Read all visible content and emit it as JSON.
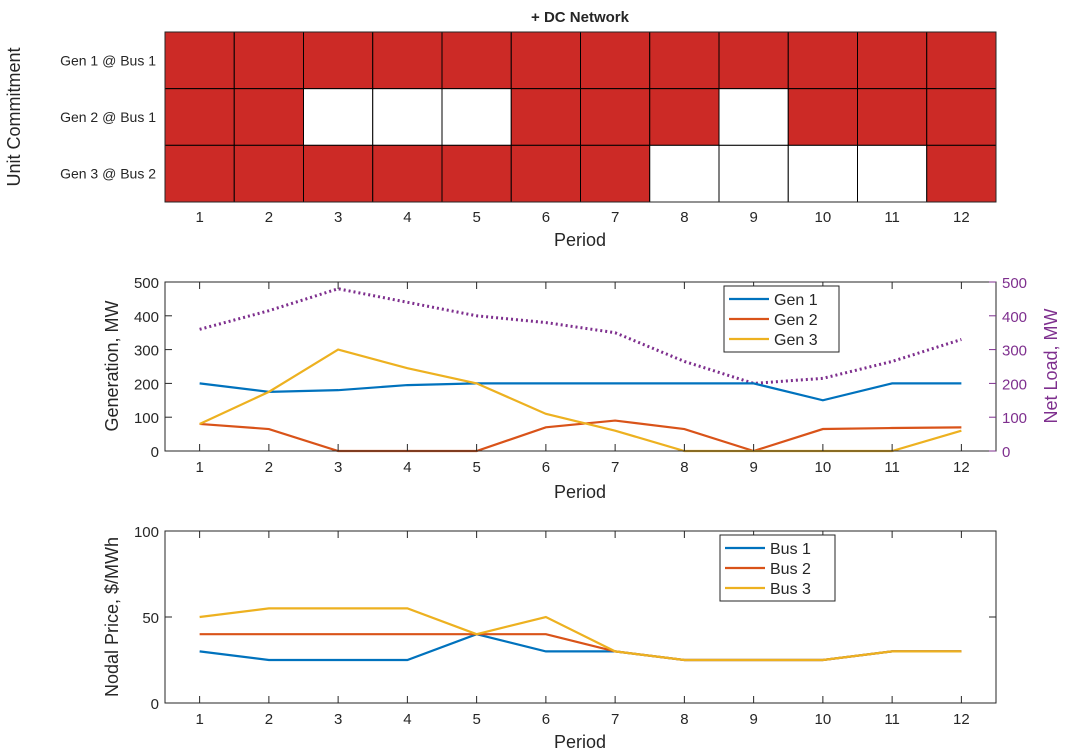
{
  "chart_data": [
    {
      "type": "heatmap",
      "title": "+ DC Network",
      "ylabel": "Unit Commitment",
      "xlabel": "Period",
      "x": [
        1,
        2,
        3,
        4,
        5,
        6,
        7,
        8,
        9,
        10,
        11,
        12
      ],
      "rows": [
        {
          "label": "Gen 1 @ Bus 1",
          "on": [
            1,
            1,
            1,
            1,
            1,
            1,
            1,
            1,
            1,
            1,
            1,
            1
          ]
        },
        {
          "label": "Gen 2 @ Bus 1",
          "on": [
            1,
            1,
            0,
            0,
            0,
            1,
            1,
            1,
            0,
            1,
            1,
            1
          ]
        },
        {
          "label": "Gen 3 @ Bus 2",
          "on": [
            1,
            1,
            1,
            1,
            1,
            1,
            1,
            0,
            0,
            0,
            0,
            1
          ]
        }
      ],
      "on_color": "#cc2a26",
      "off_color": "#ffffff"
    },
    {
      "type": "line",
      "xlabel": "Period",
      "ylabel": "Generation, MW",
      "y2label": "Net Load, MW",
      "x": [
        1,
        2,
        3,
        4,
        5,
        6,
        7,
        8,
        9,
        10,
        11,
        12
      ],
      "xlim": [
        0.5,
        12.5
      ],
      "ylim": [
        0,
        500
      ],
      "y2lim": [
        0,
        500
      ],
      "yticks": [
        0,
        100,
        200,
        300,
        400,
        500
      ],
      "series": [
        {
          "name": "Gen 1",
          "color": "#0072bd",
          "values": [
            200,
            175,
            180,
            195,
            200,
            200,
            200,
            200,
            200,
            150,
            200,
            200
          ]
        },
        {
          "name": "Gen 2",
          "color": "#d95319",
          "values": [
            80,
            65,
            0,
            0,
            0,
            70,
            90,
            65,
            0,
            65,
            68,
            70
          ]
        },
        {
          "name": "Gen 3",
          "color": "#edb120",
          "values": [
            80,
            175,
            300,
            245,
            200,
            110,
            60,
            0,
            0,
            0,
            0,
            60
          ]
        }
      ],
      "secondary_series": {
        "color": "#7e2f8e",
        "style": "dotted",
        "values": [
          360,
          415,
          480,
          440,
          400,
          380,
          350,
          265,
          200,
          215,
          265,
          330
        ]
      },
      "legend_position": "top-right"
    },
    {
      "type": "line",
      "xlabel": "Period",
      "ylabel": "Nodal Price, $/MWh",
      "x": [
        1,
        2,
        3,
        4,
        5,
        6,
        7,
        8,
        9,
        10,
        11,
        12
      ],
      "xlim": [
        0.5,
        12.5
      ],
      "ylim": [
        0,
        100
      ],
      "yticks": [
        0,
        50,
        100
      ],
      "series": [
        {
          "name": "Bus 1",
          "color": "#0072bd",
          "values": [
            30,
            25,
            25,
            25,
            40,
            30,
            30,
            25,
            25,
            25,
            30,
            30
          ]
        },
        {
          "name": "Bus 2",
          "color": "#d95319",
          "values": [
            40,
            40,
            40,
            40,
            40,
            40,
            30,
            25,
            25,
            25,
            30,
            30
          ]
        },
        {
          "name": "Bus 3",
          "color": "#edb120",
          "values": [
            50,
            55,
            55,
            55,
            40,
            50,
            30,
            25,
            25,
            25,
            30,
            30
          ]
        }
      ],
      "legend_position": "top-right"
    }
  ]
}
